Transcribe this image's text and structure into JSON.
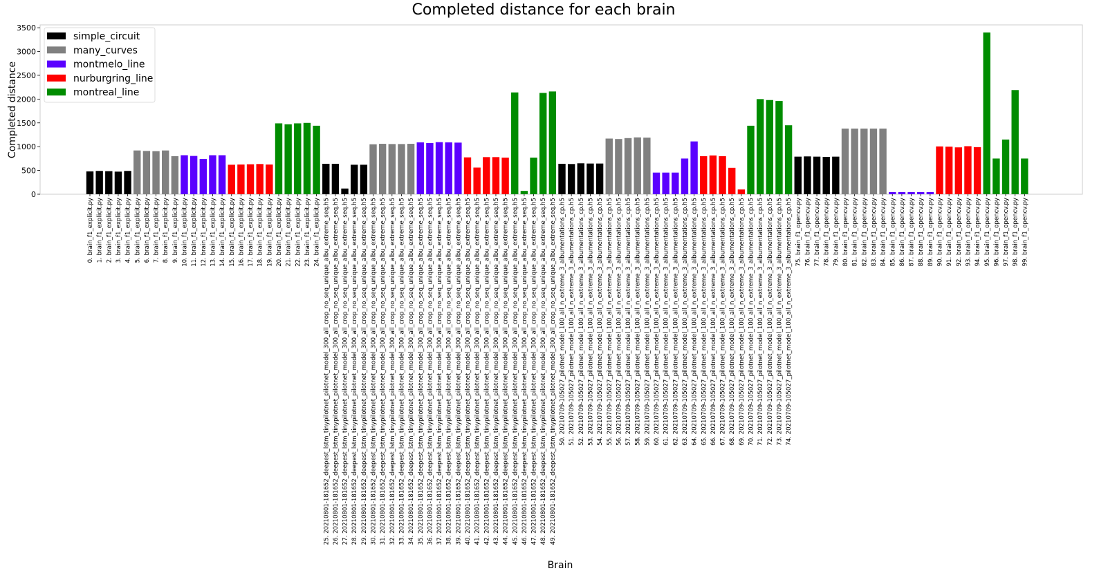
{
  "chart_data": {
    "type": "bar",
    "title": "Completed distance for each brain",
    "xlabel": "Brain",
    "ylabel": "Completed distance",
    "ylim": [
      0,
      3560
    ],
    "yticks": [
      0,
      500,
      1000,
      1500,
      2000,
      2500,
      3000,
      3500
    ],
    "grid": false,
    "legend_position": "top-left",
    "legend": [
      {
        "name": "simple_circuit",
        "color": "#000000"
      },
      {
        "name": "many_curves",
        "color": "#808080"
      },
      {
        "name": "montmelo_line",
        "color": "#5a00ff"
      },
      {
        "name": "nurburgring_line",
        "color": "#ff0000"
      },
      {
        "name": "montreal_line",
        "color": "#008c00"
      }
    ],
    "categories": [
      "0. brain_f1_explicit.py",
      "1. brain_f1_explicit.py",
      "2. brain_f1_explicit.py",
      "3. brain_f1_explicit.py",
      "4. brain_f1_explicit.py",
      "5. brain_f1_explicit.py",
      "6. brain_f1_explicit.py",
      "7. brain_f1_explicit.py",
      "8. brain_f1_explicit.py",
      "9. brain_f1_explicit.py",
      "10. brain_f1_explicit.py",
      "11. brain_f1_explicit.py",
      "12. brain_f1_explicit.py",
      "13. brain_f1_explicit.py",
      "14. brain_f1_explicit.py",
      "15. brain_f1_explicit.py",
      "16. brain_f1_explicit.py",
      "17. brain_f1_explicit.py",
      "18. brain_f1_explicit.py",
      "19. brain_f1_explicit.py",
      "20. brain_f1_explicit.py",
      "21. brain_f1_explicit.py",
      "22. brain_f1_explicit.py",
      "23. brain_f1_explicit.py",
      "24. brain_f1_explicit.py",
      "25. 20210801-181652_deepest_lstm_tinypilotnet_pilotnet_model_300_all_crop_no_seq_unique_albu_extreme_seq.h5",
      "26. 20210801-181652_deepest_lstm_tinypilotnet_pilotnet_model_300_all_crop_no_seq_unique_albu_extreme_seq.h5",
      "27. 20210801-181652_deepest_lstm_tinypilotnet_pilotnet_model_300_all_crop_no_seq_unique_albu_extreme_seq.h5",
      "28. 20210801-181652_deepest_lstm_tinypilotnet_pilotnet_model_300_all_crop_no_seq_unique_albu_extreme_seq.h5",
      "29. 20210801-181652_deepest_lstm_tinypilotnet_pilotnet_model_300_all_crop_no_seq_unique_albu_extreme_seq.h5",
      "30. 20210801-181652_deepest_lstm_tinypilotnet_pilotnet_model_300_all_crop_no_seq_unique_albu_extreme_seq.h5",
      "31. 20210801-181652_deepest_lstm_tinypilotnet_pilotnet_model_300_all_crop_no_seq_unique_albu_extreme_seq.h5",
      "32. 20210801-181652_deepest_lstm_tinypilotnet_pilotnet_model_300_all_crop_no_seq_unique_albu_extreme_seq.h5",
      "33. 20210801-181652_deepest_lstm_tinypilotnet_pilotnet_model_300_all_crop_no_seq_unique_albu_extreme_seq.h5",
      "34. 20210801-181652_deepest_lstm_tinypilotnet_pilotnet_model_300_all_crop_no_seq_unique_albu_extreme_seq.h5",
      "35. 20210801-181652_deepest_lstm_tinypilotnet_pilotnet_model_300_all_crop_no_seq_unique_albu_extreme_seq.h5",
      "36. 20210801-181652_deepest_lstm_tinypilotnet_pilotnet_model_300_all_crop_no_seq_unique_albu_extreme_seq.h5",
      "37. 20210801-181652_deepest_lstm_tinypilotnet_pilotnet_model_300_all_crop_no_seq_unique_albu_extreme_seq.h5",
      "38. 20210801-181652_deepest_lstm_tinypilotnet_pilotnet_model_300_all_crop_no_seq_unique_albu_extreme_seq.h5",
      "39. 20210801-181652_deepest_lstm_tinypilotnet_pilotnet_model_300_all_crop_no_seq_unique_albu_extreme_seq.h5",
      "40. 20210801-181652_deepest_lstm_tinypilotnet_pilotnet_model_300_all_crop_no_seq_unique_albu_extreme_seq.h5",
      "41. 20210801-181652_deepest_lstm_tinypilotnet_pilotnet_model_300_all_crop_no_seq_unique_albu_extreme_seq.h5",
      "42. 20210801-181652_deepest_lstm_tinypilotnet_pilotnet_model_300_all_crop_no_seq_unique_albu_extreme_seq.h5",
      "43. 20210801-181652_deepest_lstm_tinypilotnet_pilotnet_model_300_all_crop_no_seq_unique_albu_extreme_seq.h5",
      "44. 20210801-181652_deepest_lstm_tinypilotnet_pilotnet_model_300_all_crop_no_seq_unique_albu_extreme_seq.h5",
      "45. 20210801-181652_deepest_lstm_tinypilotnet_pilotnet_model_300_all_crop_no_seq_unique_albu_extreme_seq.h5",
      "46. 20210801-181652_deepest_lstm_tinypilotnet_pilotnet_model_300_all_crop_no_seq_unique_albu_extreme_seq.h5",
      "47. 20210801-181652_deepest_lstm_tinypilotnet_pilotnet_model_300_all_crop_no_seq_unique_albu_extreme_seq.h5",
      "48. 20210801-181652_deepest_lstm_tinypilotnet_pilotnet_model_300_all_crop_no_seq_unique_albu_extreme_seq.h5",
      "49. 20210801-181652_deepest_lstm_tinypilotnet_pilotnet_model_300_all_crop_no_seq_unique_albu_extreme_seq.h5",
      "50. 20210709-105027_pilotnet_model_100_all_n_extreme_3_albumentations_cp.h5",
      "51. 20210709-105027_pilotnet_model_100_all_n_extreme_3_albumentations_cp.h5",
      "52. 20210709-105027_pilotnet_model_100_all_n_extreme_3_albumentations_cp.h5",
      "53. 20210709-105027_pilotnet_model_100_all_n_extreme_3_albumentations_cp.h5",
      "54. 20210709-105027_pilotnet_model_100_all_n_extreme_3_albumentations_cp.h5",
      "55. 20210709-105027_pilotnet_model_100_all_n_extreme_3_albumentations_cp.h5",
      "56. 20210709-105027_pilotnet_model_100_all_n_extreme_3_albumentations_cp.h5",
      "57. 20210709-105027_pilotnet_model_100_all_n_extreme_3_albumentations_cp.h5",
      "58. 20210709-105027_pilotnet_model_100_all_n_extreme_3_albumentations_cp.h5",
      "59. 20210709-105027_pilotnet_model_100_all_n_extreme_3_albumentations_cp.h5",
      "60. 20210709-105027_pilotnet_model_100_all_n_extreme_3_albumentations_cp.h5",
      "61. 20210709-105027_pilotnet_model_100_all_n_extreme_3_albumentations_cp.h5",
      "62. 20210709-105027_pilotnet_model_100_all_n_extreme_3_albumentations_cp.h5",
      "63. 20210709-105027_pilotnet_model_100_all_n_extreme_3_albumentations_cp.h5",
      "64. 20210709-105027_pilotnet_model_100_all_n_extreme_3_albumentations_cp.h5",
      "65. 20210709-105027_pilotnet_model_100_all_n_extreme_3_albumentations_cp.h5",
      "66. 20210709-105027_pilotnet_model_100_all_n_extreme_3_albumentations_cp.h5",
      "67. 20210709-105027_pilotnet_model_100_all_n_extreme_3_albumentations_cp.h5",
      "68. 20210709-105027_pilotnet_model_100_all_n_extreme_3_albumentations_cp.h5",
      "69. 20210709-105027_pilotnet_model_100_all_n_extreme_3_albumentations_cp.h5",
      "70. 20210709-105027_pilotnet_model_100_all_n_extreme_3_albumentations_cp.h5",
      "71. 20210709-105027_pilotnet_model_100_all_n_extreme_3_albumentations_cp.h5",
      "72. 20210709-105027_pilotnet_model_100_all_n_extreme_3_albumentations_cp.h5",
      "73. 20210709-105027_pilotnet_model_100_all_n_extreme_3_albumentations_cp.h5",
      "74. 20210709-105027_pilotnet_model_100_all_n_extreme_3_albumentations_cp.h5",
      "75. brain_f1_opencv.py",
      "76. brain_f1_opencv.py",
      "77. brain_f1_opencv.py",
      "78. brain_f1_opencv.py",
      "79. brain_f1_opencv.py",
      "80. brain_f1_opencv.py",
      "81. brain_f1_opencv.py",
      "82. brain_f1_opencv.py",
      "83. brain_f1_opencv.py",
      "84. brain_f1_opencv.py",
      "85. brain_f1_opencv.py",
      "86. brain_f1_opencv.py",
      "87. brain_f1_opencv.py",
      "88. brain_f1_opencv.py",
      "89. brain_f1_opencv.py",
      "90. brain_f1_opencv.py",
      "91. brain_f1_opencv.py",
      "92. brain_f1_opencv.py",
      "93. brain_f1_opencv.py",
      "94. brain_f1_opencv.py",
      "95. brain_f1_opencv.py",
      "96. brain_f1_opencv.py",
      "97. brain_f1_opencv.py",
      "98. brain_f1_opencv.py",
      "99. brain_f1_opencv.py"
    ],
    "values": [
      480,
      490,
      485,
      475,
      490,
      920,
      910,
      905,
      920,
      800,
      820,
      805,
      740,
      820,
      820,
      620,
      625,
      630,
      635,
      625,
      1490,
      1470,
      1490,
      1500,
      1440,
      640,
      640,
      120,
      620,
      620,
      1050,
      1060,
      1055,
      1055,
      1060,
      1090,
      1075,
      1095,
      1090,
      1085,
      775,
      560,
      780,
      780,
      770,
      2140,
      70,
      770,
      2130,
      2160,
      640,
      635,
      650,
      645,
      645,
      1170,
      1160,
      1180,
      1195,
      1190,
      455,
      455,
      455,
      750,
      1110,
      800,
      815,
      800,
      555,
      100,
      1440,
      2000,
      1980,
      1960,
      1450,
      790,
      795,
      790,
      785,
      790,
      1380,
      1380,
      1380,
      1380,
      1380,
      45,
      45,
      45,
      45,
      45,
      1005,
      1000,
      985,
      1010,
      990,
      3400,
      750,
      1150,
      2190,
      750
    ],
    "bar_series_index": [
      0,
      0,
      0,
      0,
      0,
      1,
      1,
      1,
      1,
      1,
      2,
      2,
      2,
      2,
      2,
      3,
      3,
      3,
      3,
      3,
      4,
      4,
      4,
      4,
      4,
      0,
      0,
      0,
      0,
      0,
      1,
      1,
      1,
      1,
      1,
      2,
      2,
      2,
      2,
      2,
      3,
      3,
      3,
      3,
      3,
      4,
      4,
      4,
      4,
      4,
      0,
      0,
      0,
      0,
      0,
      1,
      1,
      1,
      1,
      1,
      2,
      2,
      2,
      2,
      2,
      3,
      3,
      3,
      3,
      3,
      4,
      4,
      4,
      4,
      4,
      0,
      0,
      0,
      0,
      0,
      1,
      1,
      1,
      1,
      1,
      2,
      2,
      2,
      2,
      2,
      3,
      3,
      3,
      3,
      3,
      4,
      4,
      4,
      4,
      4
    ]
  }
}
